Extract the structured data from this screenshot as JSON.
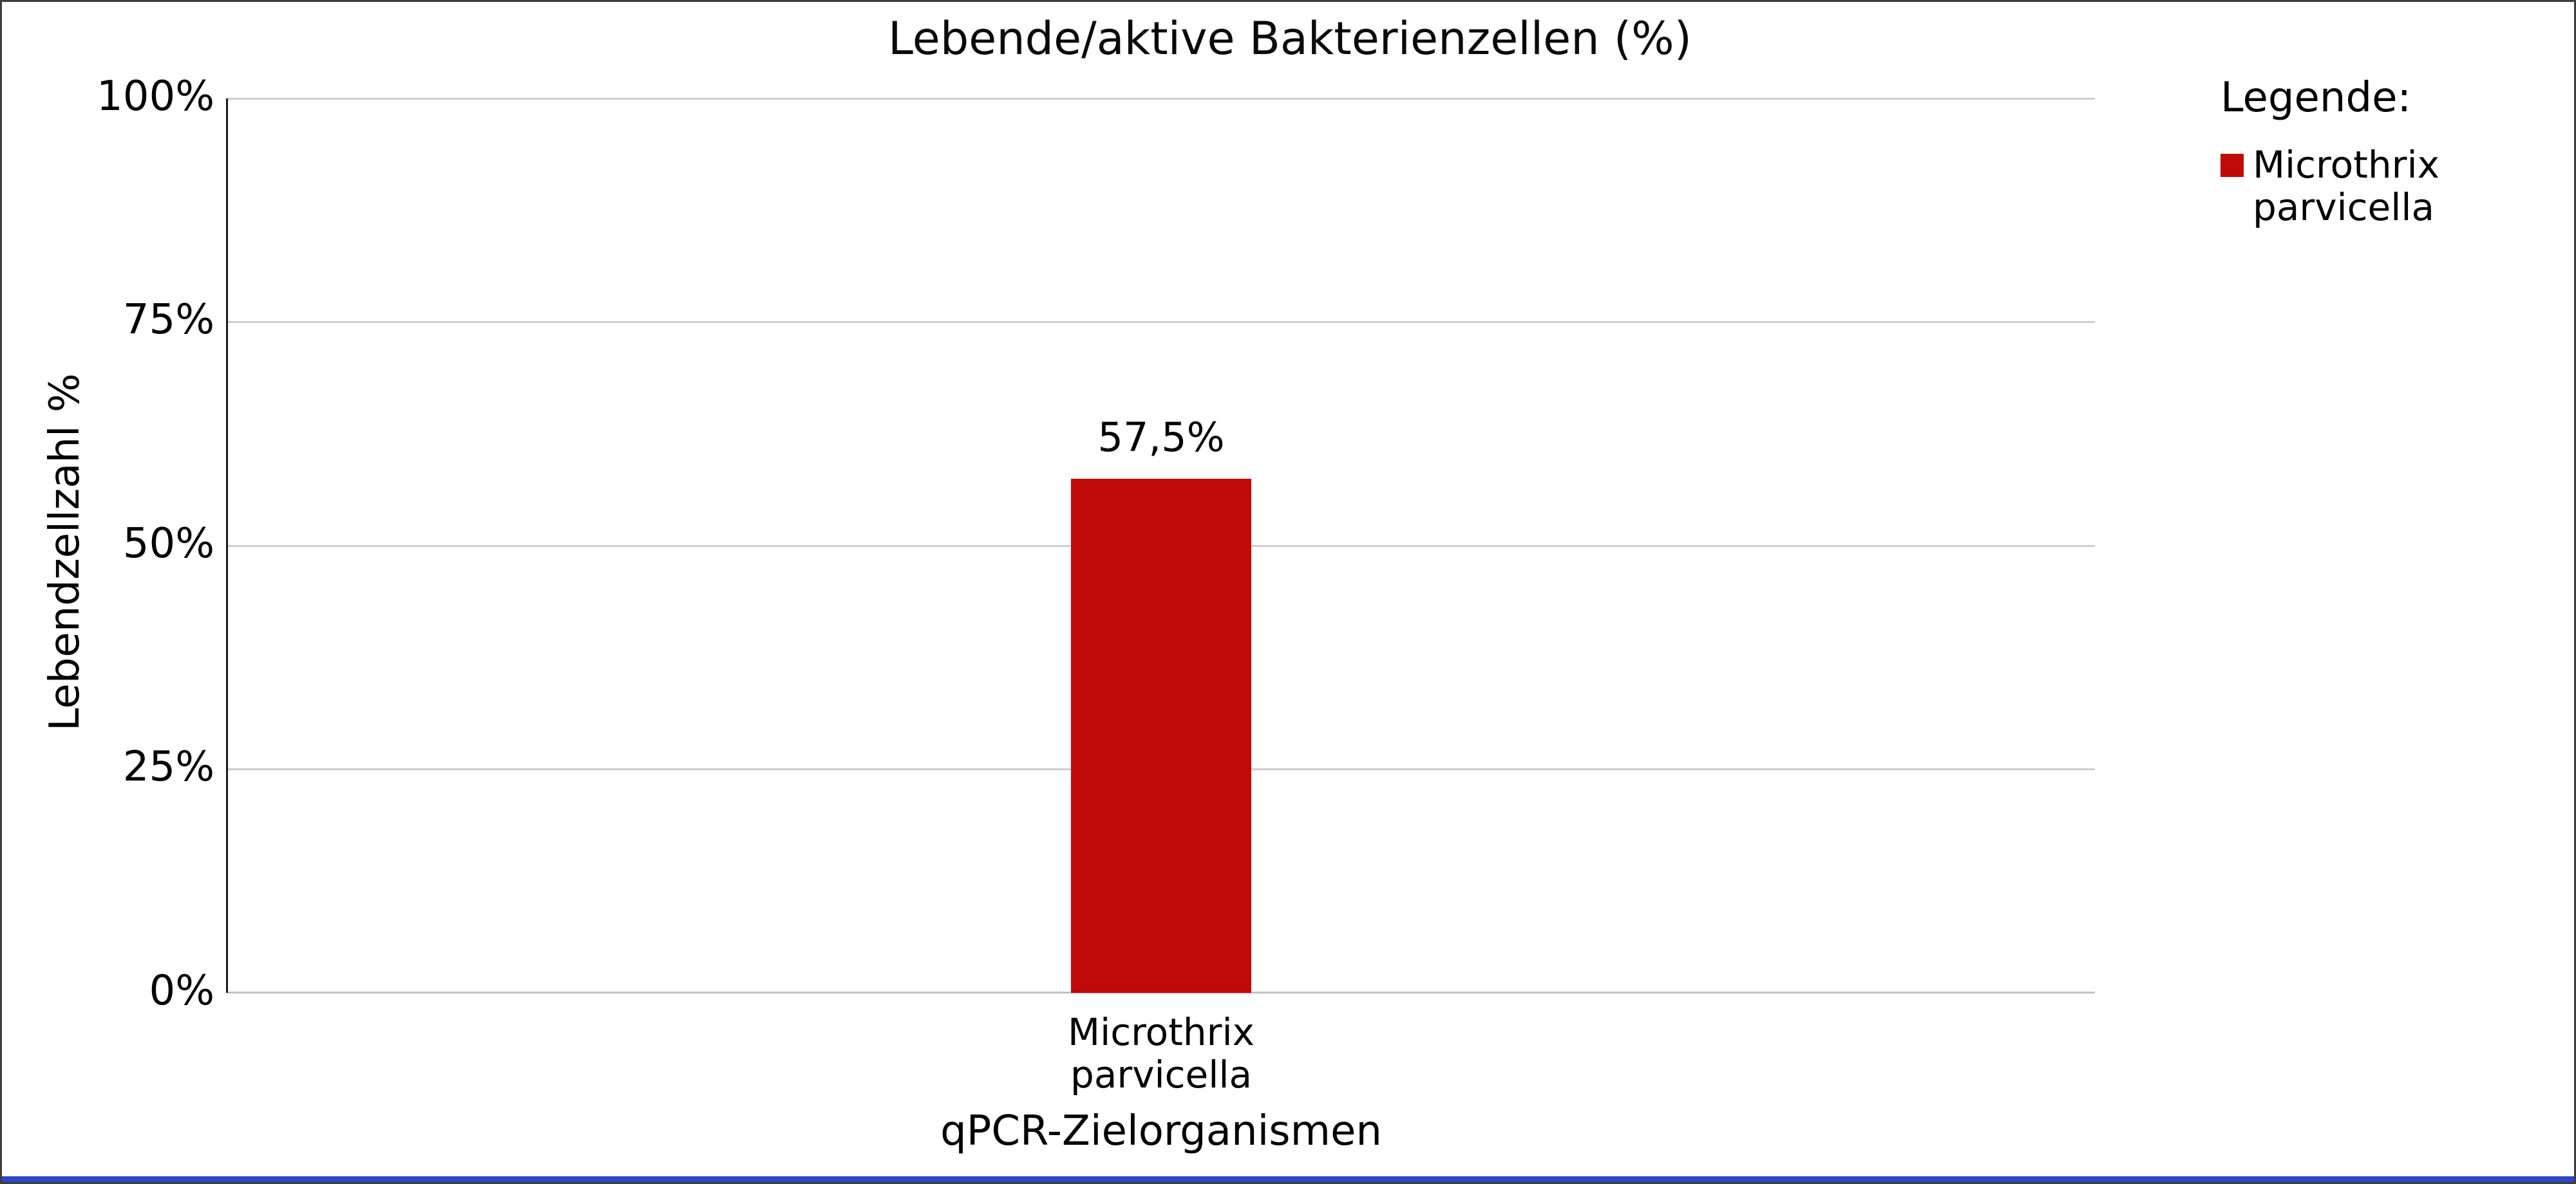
{
  "chart_data": {
    "type": "bar",
    "title": "Lebende/aktive Bakterienzellen (%)",
    "xlabel": "qPCR-Zielorganismen",
    "ylabel": "Lebendzellzahl %",
    "categories": [
      "Microthrix parvicella"
    ],
    "values": [
      57.5
    ],
    "value_labels": [
      "57,5%"
    ],
    "ylim": [
      0,
      100
    ],
    "yticks": [
      "100%",
      "75%",
      "50%",
      "25%",
      "0%"
    ],
    "grid": "horizontal",
    "legend_position": "top-right",
    "bar_color": "#c00a0a",
    "gridline_color": "#cdcdcd",
    "legend": {
      "title": "Legende:",
      "entries": [
        {
          "label": "Microthrix parvicella",
          "color": "#c00a0a"
        }
      ]
    }
  },
  "frame": {
    "bottom_bar_color": "#2c46c6"
  }
}
